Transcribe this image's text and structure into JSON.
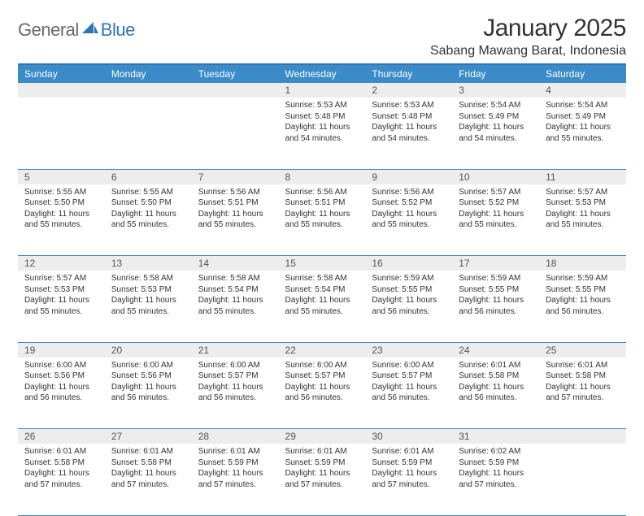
{
  "brand": {
    "part1": "General",
    "part2": "Blue"
  },
  "title": "January 2025",
  "location": "Sabang Mawang Barat, Indonesia",
  "colors": {
    "header_bg": "#3b8bc9",
    "header_text": "#ffffff",
    "daynum_bg": "#ededed",
    "rule": "#3b8bc9",
    "brand_gray": "#6a6a6a",
    "brand_blue": "#2f75b5",
    "body_text": "#333333",
    "page_bg": "#ffffff"
  },
  "typography": {
    "title_fontsize": 30,
    "location_fontsize": 16,
    "dayheader_fontsize": 12,
    "daynum_fontsize": 12,
    "cell_fontsize": 10
  },
  "day_headers": [
    "Sunday",
    "Monday",
    "Tuesday",
    "Wednesday",
    "Thursday",
    "Friday",
    "Saturday"
  ],
  "weeks": [
    [
      {
        "n": "",
        "sunrise": "",
        "sunset": "",
        "daylight": ""
      },
      {
        "n": "",
        "sunrise": "",
        "sunset": "",
        "daylight": ""
      },
      {
        "n": "",
        "sunrise": "",
        "sunset": "",
        "daylight": ""
      },
      {
        "n": "1",
        "sunrise": "Sunrise: 5:53 AM",
        "sunset": "Sunset: 5:48 PM",
        "daylight": "Daylight: 11 hours and 54 minutes."
      },
      {
        "n": "2",
        "sunrise": "Sunrise: 5:53 AM",
        "sunset": "Sunset: 5:48 PM",
        "daylight": "Daylight: 11 hours and 54 minutes."
      },
      {
        "n": "3",
        "sunrise": "Sunrise: 5:54 AM",
        "sunset": "Sunset: 5:49 PM",
        "daylight": "Daylight: 11 hours and 54 minutes."
      },
      {
        "n": "4",
        "sunrise": "Sunrise: 5:54 AM",
        "sunset": "Sunset: 5:49 PM",
        "daylight": "Daylight: 11 hours and 55 minutes."
      }
    ],
    [
      {
        "n": "5",
        "sunrise": "Sunrise: 5:55 AM",
        "sunset": "Sunset: 5:50 PM",
        "daylight": "Daylight: 11 hours and 55 minutes."
      },
      {
        "n": "6",
        "sunrise": "Sunrise: 5:55 AM",
        "sunset": "Sunset: 5:50 PM",
        "daylight": "Daylight: 11 hours and 55 minutes."
      },
      {
        "n": "7",
        "sunrise": "Sunrise: 5:56 AM",
        "sunset": "Sunset: 5:51 PM",
        "daylight": "Daylight: 11 hours and 55 minutes."
      },
      {
        "n": "8",
        "sunrise": "Sunrise: 5:56 AM",
        "sunset": "Sunset: 5:51 PM",
        "daylight": "Daylight: 11 hours and 55 minutes."
      },
      {
        "n": "9",
        "sunrise": "Sunrise: 5:56 AM",
        "sunset": "Sunset: 5:52 PM",
        "daylight": "Daylight: 11 hours and 55 minutes."
      },
      {
        "n": "10",
        "sunrise": "Sunrise: 5:57 AM",
        "sunset": "Sunset: 5:52 PM",
        "daylight": "Daylight: 11 hours and 55 minutes."
      },
      {
        "n": "11",
        "sunrise": "Sunrise: 5:57 AM",
        "sunset": "Sunset: 5:53 PM",
        "daylight": "Daylight: 11 hours and 55 minutes."
      }
    ],
    [
      {
        "n": "12",
        "sunrise": "Sunrise: 5:57 AM",
        "sunset": "Sunset: 5:53 PM",
        "daylight": "Daylight: 11 hours and 55 minutes."
      },
      {
        "n": "13",
        "sunrise": "Sunrise: 5:58 AM",
        "sunset": "Sunset: 5:53 PM",
        "daylight": "Daylight: 11 hours and 55 minutes."
      },
      {
        "n": "14",
        "sunrise": "Sunrise: 5:58 AM",
        "sunset": "Sunset: 5:54 PM",
        "daylight": "Daylight: 11 hours and 55 minutes."
      },
      {
        "n": "15",
        "sunrise": "Sunrise: 5:58 AM",
        "sunset": "Sunset: 5:54 PM",
        "daylight": "Daylight: 11 hours and 55 minutes."
      },
      {
        "n": "16",
        "sunrise": "Sunrise: 5:59 AM",
        "sunset": "Sunset: 5:55 PM",
        "daylight": "Daylight: 11 hours and 56 minutes."
      },
      {
        "n": "17",
        "sunrise": "Sunrise: 5:59 AM",
        "sunset": "Sunset: 5:55 PM",
        "daylight": "Daylight: 11 hours and 56 minutes."
      },
      {
        "n": "18",
        "sunrise": "Sunrise: 5:59 AM",
        "sunset": "Sunset: 5:55 PM",
        "daylight": "Daylight: 11 hours and 56 minutes."
      }
    ],
    [
      {
        "n": "19",
        "sunrise": "Sunrise: 6:00 AM",
        "sunset": "Sunset: 5:56 PM",
        "daylight": "Daylight: 11 hours and 56 minutes."
      },
      {
        "n": "20",
        "sunrise": "Sunrise: 6:00 AM",
        "sunset": "Sunset: 5:56 PM",
        "daylight": "Daylight: 11 hours and 56 minutes."
      },
      {
        "n": "21",
        "sunrise": "Sunrise: 6:00 AM",
        "sunset": "Sunset: 5:57 PM",
        "daylight": "Daylight: 11 hours and 56 minutes."
      },
      {
        "n": "22",
        "sunrise": "Sunrise: 6:00 AM",
        "sunset": "Sunset: 5:57 PM",
        "daylight": "Daylight: 11 hours and 56 minutes."
      },
      {
        "n": "23",
        "sunrise": "Sunrise: 6:00 AM",
        "sunset": "Sunset: 5:57 PM",
        "daylight": "Daylight: 11 hours and 56 minutes."
      },
      {
        "n": "24",
        "sunrise": "Sunrise: 6:01 AM",
        "sunset": "Sunset: 5:58 PM",
        "daylight": "Daylight: 11 hours and 56 minutes."
      },
      {
        "n": "25",
        "sunrise": "Sunrise: 6:01 AM",
        "sunset": "Sunset: 5:58 PM",
        "daylight": "Daylight: 11 hours and 57 minutes."
      }
    ],
    [
      {
        "n": "26",
        "sunrise": "Sunrise: 6:01 AM",
        "sunset": "Sunset: 5:58 PM",
        "daylight": "Daylight: 11 hours and 57 minutes."
      },
      {
        "n": "27",
        "sunrise": "Sunrise: 6:01 AM",
        "sunset": "Sunset: 5:58 PM",
        "daylight": "Daylight: 11 hours and 57 minutes."
      },
      {
        "n": "28",
        "sunrise": "Sunrise: 6:01 AM",
        "sunset": "Sunset: 5:59 PM",
        "daylight": "Daylight: 11 hours and 57 minutes."
      },
      {
        "n": "29",
        "sunrise": "Sunrise: 6:01 AM",
        "sunset": "Sunset: 5:59 PM",
        "daylight": "Daylight: 11 hours and 57 minutes."
      },
      {
        "n": "30",
        "sunrise": "Sunrise: 6:01 AM",
        "sunset": "Sunset: 5:59 PM",
        "daylight": "Daylight: 11 hours and 57 minutes."
      },
      {
        "n": "31",
        "sunrise": "Sunrise: 6:02 AM",
        "sunset": "Sunset: 5:59 PM",
        "daylight": "Daylight: 11 hours and 57 minutes."
      },
      {
        "n": "",
        "sunrise": "",
        "sunset": "",
        "daylight": ""
      }
    ]
  ]
}
